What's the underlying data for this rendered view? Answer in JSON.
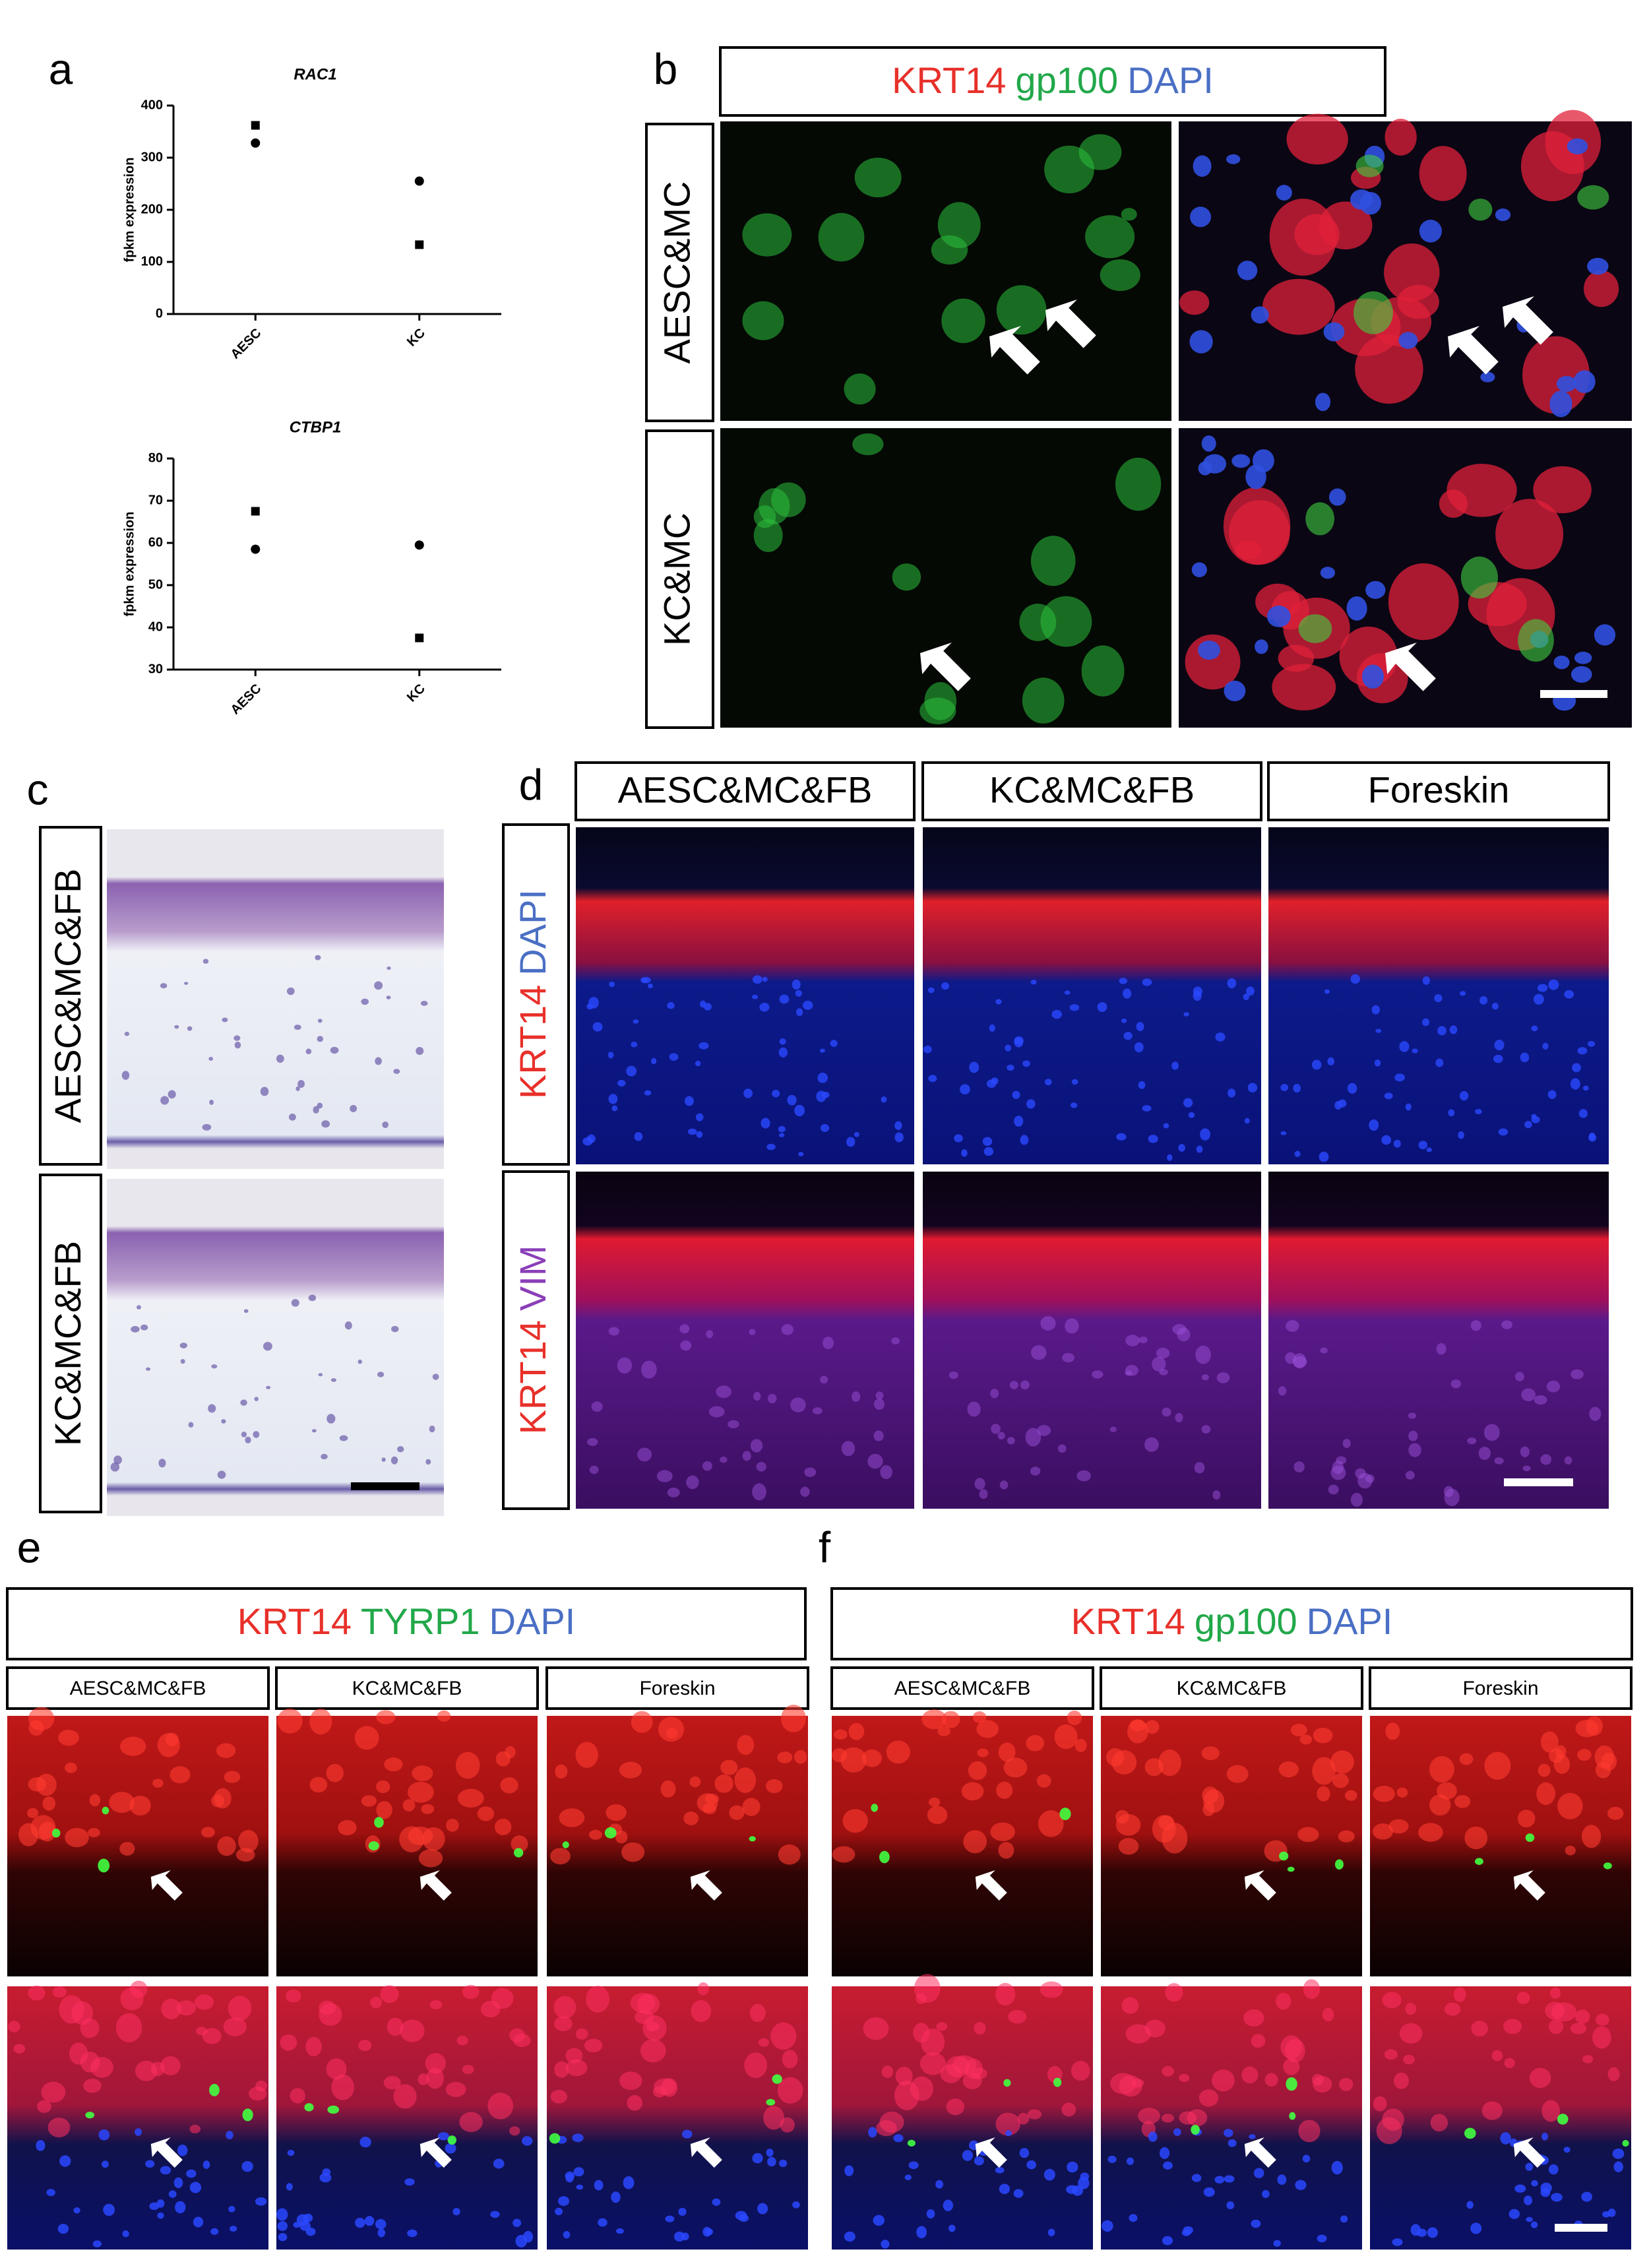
{
  "chart_data": [
    {
      "type": "scatter",
      "title": "RAC1",
      "y_label": "fpkm expression",
      "categories": [
        "AESC",
        "KC"
      ],
      "series": [
        {
          "marker": "square",
          "color": "#000000",
          "values": [
            362,
            133
          ]
        },
        {
          "marker": "circle",
          "color": "#000000",
          "values": [
            328,
            255
          ]
        }
      ],
      "ylim": [
        0,
        400
      ],
      "yticks": [
        0,
        100,
        200,
        300,
        400
      ]
    },
    {
      "type": "scatter",
      "title": "CTBP1",
      "y_label": "fpkm expression",
      "categories": [
        "AESC",
        "KC"
      ],
      "series": [
        {
          "marker": "square",
          "color": "#000000",
          "values": [
            67.5,
            37.5
          ]
        },
        {
          "marker": "circle",
          "color": "#000000",
          "values": [
            58.5,
            59.5
          ]
        }
      ],
      "ylim": [
        30,
        80
      ],
      "yticks": [
        30,
        40,
        50,
        60,
        70,
        80
      ]
    }
  ],
  "panels": {
    "a": {
      "letter": "a"
    },
    "b": {
      "letter": "b",
      "stain": [
        {
          "text": "KRT14",
          "color": "#e8302a"
        },
        {
          "text": "gp100",
          "color": "#22a84a"
        },
        {
          "text": "DAPI",
          "color": "#4a6fc4"
        }
      ],
      "rows": [
        "AESC&MC",
        "KC&MC"
      ]
    },
    "c": {
      "letter": "c",
      "rows": [
        "AESC&MC&FB",
        "KC&MC&FB"
      ]
    },
    "d": {
      "letter": "d",
      "columns": [
        "AESC&MC&FB",
        "KC&MC&FB",
        "Foreskin"
      ],
      "rows": [
        [
          {
            "text": "KRT14",
            "color": "#e8302a"
          },
          {
            "text": "DAPI",
            "color": "#4a6fc4"
          }
        ],
        [
          {
            "text": "KRT14",
            "color": "#e8302a"
          },
          {
            "text": "VIM",
            "color": "#8a3fb8"
          }
        ]
      ]
    },
    "e": {
      "letter": "e",
      "stain": [
        {
          "text": "KRT14",
          "color": "#e8302a"
        },
        {
          "text": "TYRP1",
          "color": "#22a84a"
        },
        {
          "text": "DAPI",
          "color": "#4a6fc4"
        }
      ],
      "columns": [
        "AESC&MC&FB",
        "KC&MC&FB",
        "Foreskin"
      ]
    },
    "f": {
      "letter": "f",
      "stain": [
        {
          "text": "KRT14",
          "color": "#e8302a"
        },
        {
          "text": "gp100",
          "color": "#22a84a"
        },
        {
          "text": "DAPI",
          "color": "#4a6fc4"
        }
      ],
      "columns": [
        "AESC&MC&FB",
        "KC&MC&FB",
        "Foreskin"
      ]
    }
  }
}
